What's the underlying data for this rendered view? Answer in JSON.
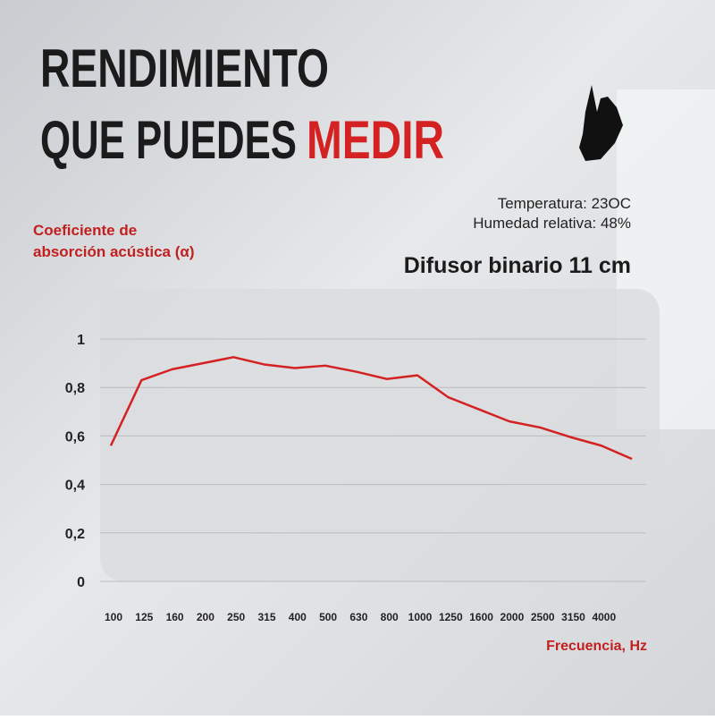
{
  "header": {
    "line1": "RENDIMIENTO",
    "line2": "QUE PUEDES",
    "highlight": "MEDIR"
  },
  "chart_data": {
    "type": "line",
    "title": "Difusor binario 11 cm",
    "annotations": [
      "Temperatura: 23OC",
      "Humedad relativa: 48%"
    ],
    "y_label": [
      "Coeficiente de",
      "absorción acústica (α)"
    ],
    "x_label": "Frecuencia, Hz",
    "categories": [
      "100",
      "125",
      "160",
      "200",
      "250",
      "315",
      "400",
      "500",
      "630",
      "800",
      "1000",
      "1250",
      "1600",
      "2000",
      "2500",
      "3150",
      "4000",
      null
    ],
    "series": [
      {
        "name": "Difusor binario 11 cm",
        "color": "#d42222",
        "values": [
          0.56,
          0.83,
          0.875,
          0.9,
          0.925,
          0.895,
          0.88,
          0.89,
          0.865,
          0.835,
          0.85,
          0.76,
          0.71,
          0.66,
          0.635,
          0.595,
          0.56,
          0.505
        ]
      }
    ],
    "ylim": [
      0,
      1.1
    ],
    "yticks": [
      0,
      {
        "value": 0.2,
        "label": "0,2"
      },
      {
        "value": 0.4,
        "label": "0,4"
      },
      {
        "value": 0.6,
        "label": "0,6"
      },
      {
        "value": 0.8,
        "label": "0,8"
      },
      1
    ],
    "grid": true,
    "legend": false
  }
}
